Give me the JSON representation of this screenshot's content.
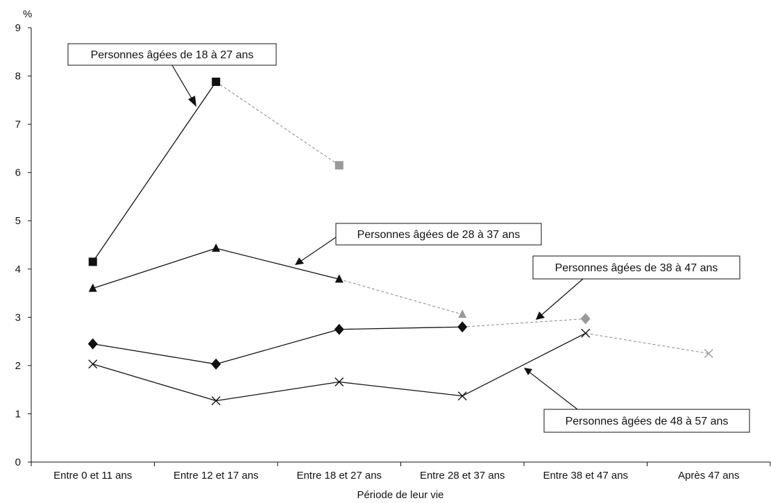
{
  "chart_data": {
    "type": "line",
    "ylabel": "%",
    "xlabel": "Période de leur vie",
    "ylim": [
      0,
      9
    ],
    "yticks": [
      0,
      1,
      2,
      3,
      4,
      5,
      6,
      7,
      8,
      9
    ],
    "categories": [
      "Entre 0 et 11 ans",
      "Entre 12 et 17 ans",
      "Entre 18 et 27 ans",
      "Entre 28 et 37 ans",
      "Entre 38 et 47 ans",
      "Après 47 ans"
    ],
    "grid": false,
    "series": [
      {
        "name": "Personnes âgées de 18 à 27 ans",
        "marker": "square",
        "values": [
          4.15,
          7.88,
          6.15,
          null,
          null,
          null
        ],
        "dashed_from_index": 1
      },
      {
        "name": "Personnes âgées de 28 à 37 ans",
        "marker": "triangle",
        "values": [
          3.6,
          4.43,
          3.79,
          3.06,
          null,
          null
        ],
        "dashed_from_index": 2
      },
      {
        "name": "Personnes âgées de 38 à 47 ans",
        "marker": "diamond",
        "values": [
          2.45,
          2.03,
          2.75,
          2.8,
          2.97,
          null
        ],
        "dashed_from_index": 3
      },
      {
        "name": "Personnes âgées de 48 à 57 ans",
        "marker": "x",
        "values": [
          2.03,
          1.27,
          1.66,
          1.37,
          2.67,
          2.25
        ],
        "dashed_from_index": 4
      }
    ],
    "colors": {
      "solid": "#111111",
      "projected": "#9a9a9a"
    }
  }
}
